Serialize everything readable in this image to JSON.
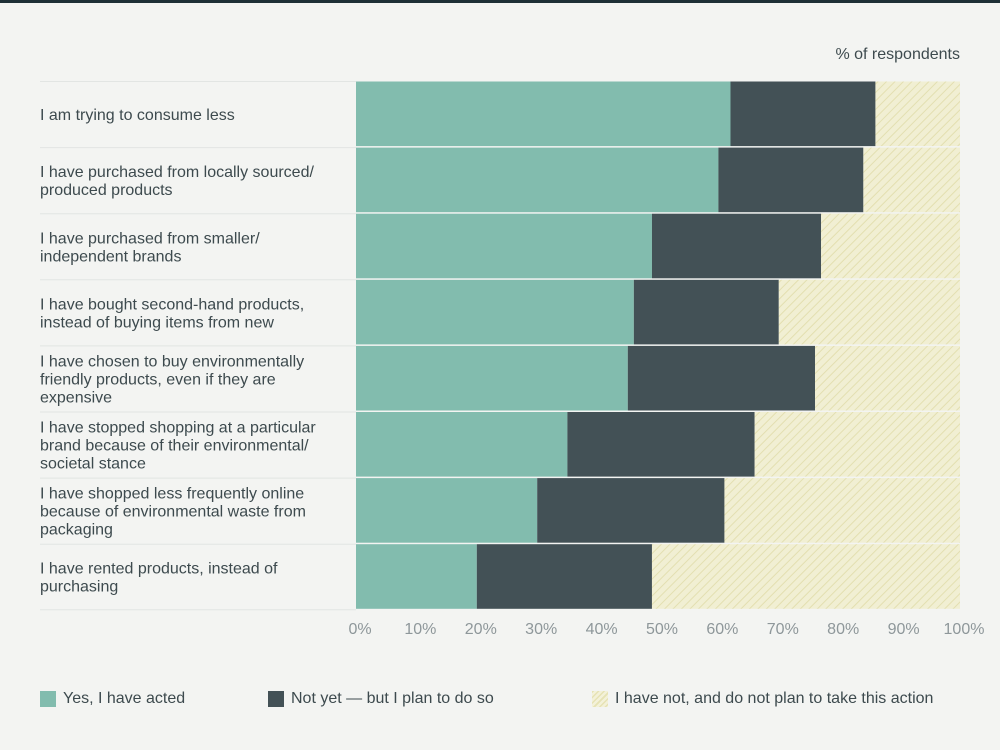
{
  "chart_data": {
    "type": "bar",
    "orientation": "horizontal",
    "stacked": true,
    "unit_label": "% of respondents",
    "categories": [
      [
        "I am trying to consume less"
      ],
      [
        "I have purchased from locally sourced/",
        "produced products"
      ],
      [
        "I have purchased from smaller/",
        "independent brands"
      ],
      [
        "I have bought second-hand products,",
        "instead of buying items from new"
      ],
      [
        "I have chosen to buy environmentally",
        "friendly products, even if they are",
        "expensive"
      ],
      [
        "I have stopped shopping at a particular",
        "brand because of their environmental/",
        "societal stance"
      ],
      [
        "I have shopped less frequently online",
        "because of environmental waste from",
        "packaging"
      ],
      [
        "I have rented products, instead of",
        "purchasing"
      ]
    ],
    "series": [
      {
        "name": "Yes, I have acted",
        "color": "#82bcae",
        "values": [
          62,
          60,
          49,
          46,
          45,
          35,
          30,
          20
        ]
      },
      {
        "name": "Not yet — but I plan to do so",
        "color": "#435156",
        "values": [
          24,
          24,
          28,
          24,
          31,
          31,
          31,
          29
        ]
      },
      {
        "name": "I have not, and do not plan to take this action",
        "color": "#efedcc",
        "pattern": "hatched",
        "values": [
          14,
          16,
          23,
          30,
          24,
          34,
          39,
          51
        ]
      }
    ],
    "xlim": [
      0,
      100
    ],
    "x_ticks": [
      "0%",
      "10%",
      "20%",
      "30%",
      "40%",
      "50%",
      "60%",
      "70%",
      "80%",
      "90%",
      "100%"
    ],
    "legend_position": "bottom"
  }
}
